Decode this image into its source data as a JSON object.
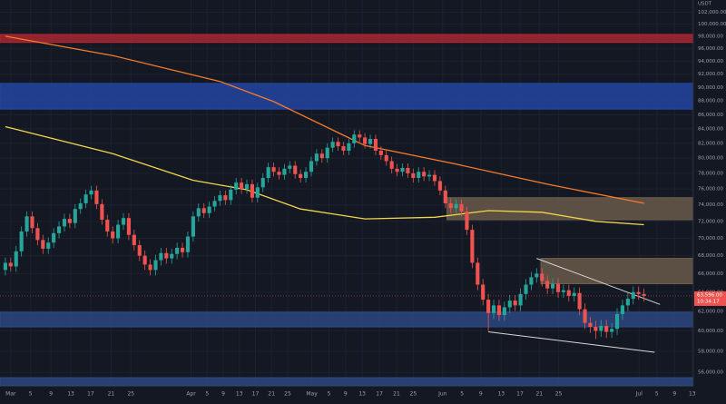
{
  "chart_data": {
    "type": "candlestick",
    "currency": "USDT",
    "log_scale": true,
    "grid": true,
    "up_color": "#26a69a",
    "down_color": "#ef5350",
    "ylim": [
      54750,
      104100
    ],
    "xlim": [
      -1,
      128.2
    ],
    "yticks": [
      {
        "value": 56000,
        "label": "56,000.00"
      },
      {
        "value": 58000,
        "label": "58,000.00"
      },
      {
        "value": 60000,
        "label": "60,000.00"
      },
      {
        "value": 62000,
        "label": "62,000.00"
      },
      {
        "value": 64000,
        "label": "64,000.00"
      },
      {
        "value": 66000,
        "label": "66,000.00"
      },
      {
        "value": 68000,
        "label": "68,000.00"
      },
      {
        "value": 70000,
        "label": "70,000.00"
      },
      {
        "value": 72000,
        "label": "72,000.00"
      },
      {
        "value": 74000,
        "label": "74,000.00"
      },
      {
        "value": 76000,
        "label": "76,000.00"
      },
      {
        "value": 78000,
        "label": "78,000.00"
      },
      {
        "value": 80000,
        "label": "80,000.00"
      },
      {
        "value": 82000,
        "label": "82,000.00"
      },
      {
        "value": 84000,
        "label": "84,000.00"
      },
      {
        "value": 86000,
        "label": "86,000.00"
      },
      {
        "value": 88000,
        "label": "88,000.00"
      },
      {
        "value": 90000,
        "label": "90,000.00"
      },
      {
        "value": 92000,
        "label": "92,000.00"
      },
      {
        "value": 94000,
        "label": "94,000.00"
      },
      {
        "value": 96000,
        "label": "96,000.00"
      },
      {
        "value": 98000,
        "label": "98,000.00"
      },
      {
        "value": 100000,
        "label": "100,000.00"
      },
      {
        "value": 102000,
        "label": "102,000.00"
      }
    ],
    "xticks": [
      {
        "value": 1.0,
        "label": "Mar"
      },
      {
        "value": 4.7,
        "label": "5"
      },
      {
        "value": 8.5,
        "label": "9"
      },
      {
        "value": 12.2,
        "label": "13"
      },
      {
        "value": 15.9,
        "label": "17"
      },
      {
        "value": 19.7,
        "label": "21"
      },
      {
        "value": 23.4,
        "label": "25"
      },
      {
        "value": 34.6,
        "label": "Apr"
      },
      {
        "value": 37.6,
        "label": "5"
      },
      {
        "value": 40.6,
        "label": "9"
      },
      {
        "value": 43.6,
        "label": "13"
      },
      {
        "value": 46.6,
        "label": "17"
      },
      {
        "value": 49.6,
        "label": "21"
      },
      {
        "value": 52.6,
        "label": "25"
      },
      {
        "value": 57.1,
        "label": "May"
      },
      {
        "value": 60.3,
        "label": "5"
      },
      {
        "value": 63.4,
        "label": "9"
      },
      {
        "value": 66.5,
        "label": "13"
      },
      {
        "value": 69.7,
        "label": "17"
      },
      {
        "value": 72.9,
        "label": "21"
      },
      {
        "value": 76.0,
        "label": "25"
      },
      {
        "value": 81.5,
        "label": "Jun"
      },
      {
        "value": 85.1,
        "label": "5"
      },
      {
        "value": 88.6,
        "label": "9"
      },
      {
        "value": 92.4,
        "label": "13"
      },
      {
        "value": 95.9,
        "label": "17"
      },
      {
        "value": 99.5,
        "label": "21"
      },
      {
        "value": 103.1,
        "label": "25"
      },
      {
        "value": 118.1,
        "label": "Jul"
      },
      {
        "value": 121.4,
        "label": "5"
      },
      {
        "value": 124.7,
        "label": "9"
      },
      {
        "value": 128.0,
        "label": "13"
      }
    ],
    "candles": {
      "open": [
        66400,
        67200,
        66800,
        68500,
        70800,
        72600,
        71200,
        69800,
        68800,
        69500,
        70600,
        71400,
        72300,
        71800,
        73500,
        74200,
        75300,
        75800,
        74100,
        72200,
        70800,
        70000,
        71600,
        72400,
        70400,
        69200,
        68000,
        67000,
        66400,
        67500,
        68300,
        67700,
        68200,
        68900,
        68400,
        70200,
        72600,
        73600,
        73000,
        73800,
        74500,
        75200,
        74600,
        75900,
        76800,
        76000,
        76600,
        74900,
        76200,
        77400,
        78800,
        78200,
        77800,
        78600,
        79000,
        77900,
        77400,
        78200,
        79600,
        80600,
        80000,
        81400,
        82200,
        81600,
        81000,
        82000,
        83200,
        82800,
        81900,
        82600,
        81000,
        80400,
        79600,
        78600,
        78200,
        78700,
        78000,
        77400,
        78200,
        77600,
        77800,
        77000,
        75800,
        74200,
        73600,
        74100,
        73200,
        71000,
        67200,
        64800,
        63200,
        61800,
        62600,
        61600,
        62400,
        63100,
        62600,
        63800,
        64800,
        65600,
        66000,
        65200,
        64400,
        64900,
        64000,
        64200,
        63600,
        63900,
        62200,
        60800,
        60400,
        60000,
        60500,
        59900,
        60200,
        61700,
        62600,
        63300,
        64000,
        63800
      ],
      "high": [
        67800,
        67800,
        69100,
        71400,
        73200,
        73200,
        71800,
        70400,
        70100,
        71200,
        72000,
        72900,
        72900,
        74100,
        74800,
        75900,
        76400,
        76400,
        74700,
        72800,
        71400,
        72200,
        73000,
        73000,
        71000,
        69800,
        68600,
        67600,
        68100,
        68900,
        68900,
        68800,
        69500,
        69500,
        70800,
        73200,
        74200,
        74200,
        74400,
        75100,
        75800,
        75800,
        76500,
        77400,
        77400,
        77200,
        77200,
        76800,
        78000,
        79400,
        79400,
        78800,
        79200,
        79600,
        79600,
        78500,
        78800,
        80200,
        81200,
        81200,
        82000,
        82800,
        82800,
        82200,
        82600,
        83800,
        83800,
        83400,
        83200,
        83200,
        81600,
        81000,
        80200,
        79200,
        79300,
        79300,
        78600,
        78800,
        78800,
        78400,
        78400,
        77600,
        76400,
        74800,
        74700,
        74700,
        73800,
        71600,
        67800,
        65400,
        63800,
        63200,
        63200,
        63000,
        63700,
        63700,
        64400,
        65400,
        66200,
        66600,
        66600,
        65800,
        65500,
        65500,
        64800,
        64800,
        64500,
        64500,
        62800,
        61400,
        61000,
        61100,
        61100,
        60800,
        62300,
        63200,
        63900,
        64600,
        64600,
        64400
      ],
      "low": [
        65800,
        66200,
        66200,
        67900,
        70200,
        70600,
        69200,
        68200,
        68200,
        68900,
        70000,
        70800,
        71200,
        71200,
        72900,
        73600,
        74700,
        73500,
        71600,
        70200,
        69400,
        69400,
        71000,
        69800,
        68600,
        67400,
        66400,
        65800,
        65800,
        66900,
        67100,
        67100,
        67600,
        67800,
        67800,
        69600,
        72000,
        72400,
        72400,
        73200,
        73900,
        74000,
        74000,
        75300,
        75400,
        75400,
        74300,
        74300,
        75600,
        76800,
        77600,
        77200,
        77200,
        78000,
        77300,
        76800,
        76800,
        77600,
        79000,
        79400,
        79400,
        80800,
        81000,
        80400,
        80400,
        81400,
        82200,
        81300,
        81300,
        80400,
        79800,
        79000,
        78000,
        77600,
        77600,
        77400,
        76800,
        76800,
        77000,
        77000,
        76400,
        75200,
        73600,
        73000,
        73000,
        72600,
        70400,
        66600,
        64200,
        62600,
        60000,
        61200,
        61000,
        61000,
        61800,
        62000,
        62000,
        63200,
        64200,
        65000,
        64600,
        63800,
        63800,
        63400,
        63400,
        63000,
        63000,
        61600,
        60200,
        59800,
        59200,
        59400,
        59300,
        59300,
        59600,
        61100,
        62000,
        62700,
        63200,
        63000
      ],
      "close": [
        67200,
        66800,
        68500,
        70800,
        72600,
        71200,
        69800,
        68800,
        69500,
        70600,
        71400,
        72300,
        71800,
        73500,
        74200,
        75300,
        75800,
        74100,
        72200,
        70800,
        70000,
        71600,
        72400,
        70400,
        69200,
        68000,
        67000,
        66400,
        67500,
        68300,
        67700,
        68200,
        68900,
        68400,
        70200,
        72600,
        73600,
        73000,
        73800,
        74500,
        75200,
        74600,
        75900,
        76800,
        76000,
        76600,
        74900,
        76200,
        77400,
        78800,
        78200,
        77800,
        78600,
        79000,
        77900,
        77400,
        78200,
        79600,
        80600,
        80000,
        81400,
        82200,
        81600,
        81000,
        82000,
        83200,
        82800,
        81900,
        82600,
        81000,
        80400,
        79600,
        78600,
        78200,
        78700,
        78000,
        77400,
        78200,
        77600,
        77800,
        77000,
        75800,
        74200,
        73600,
        74100,
        73200,
        71000,
        67200,
        64800,
        63200,
        61800,
        62600,
        61600,
        62400,
        63100,
        62600,
        63800,
        64800,
        65600,
        66000,
        65200,
        64400,
        64900,
        64000,
        64200,
        63600,
        63900,
        62200,
        60800,
        60400,
        60000,
        60500,
        59900,
        60200,
        61700,
        62600,
        63300,
        64000,
        63800,
        63600
      ]
    },
    "moving_averages": [
      {
        "color": "#f57c2a",
        "x": [
          0,
          20,
          40,
          50,
          67,
          84,
          101,
          119
        ],
        "values": [
          98000,
          94900,
          90900,
          87900,
          81700,
          79200,
          76600,
          74200
        ]
      },
      {
        "color": "#f2d64b",
        "x": [
          0,
          20,
          35,
          45,
          55,
          67,
          80,
          90,
          100,
          110,
          119
        ],
        "values": [
          84300,
          80600,
          77100,
          75900,
          73500,
          72300,
          72500,
          73300,
          73100,
          72000,
          71600
        ]
      }
    ],
    "zones": [
      {
        "color": "#b22833",
        "x_start": -1,
        "range": [
          97000,
          98300
        ]
      },
      {
        "color": "#2447a8",
        "x_start": -1,
        "range": [
          86800,
          90600
        ]
      },
      {
        "color": "#6e5e4c",
        "x_start": 82.3,
        "range": [
          72200,
          74900
        ]
      },
      {
        "color": "#6e5e4c",
        "x_start": 99.8,
        "range": [
          64900,
          67700
        ]
      },
      {
        "color": "#2d4a86",
        "x_start": -1,
        "range": [
          60400,
          61900
        ]
      },
      {
        "color": "#2d4a86",
        "x_start": -1,
        "range": [
          54800,
          55500
        ]
      }
    ],
    "trendlines": [
      {
        "color": "#d8d8d8",
        "x": [
          99,
          122
        ],
        "values": [
          67700,
          62700
        ]
      },
      {
        "color": "#d8d8d8",
        "x": [
          90,
          121
        ],
        "values": [
          59900,
          57900
        ]
      }
    ],
    "last_price": {
      "value": 63596,
      "label": "63,596.00"
    },
    "countdown": "10:34:17"
  }
}
